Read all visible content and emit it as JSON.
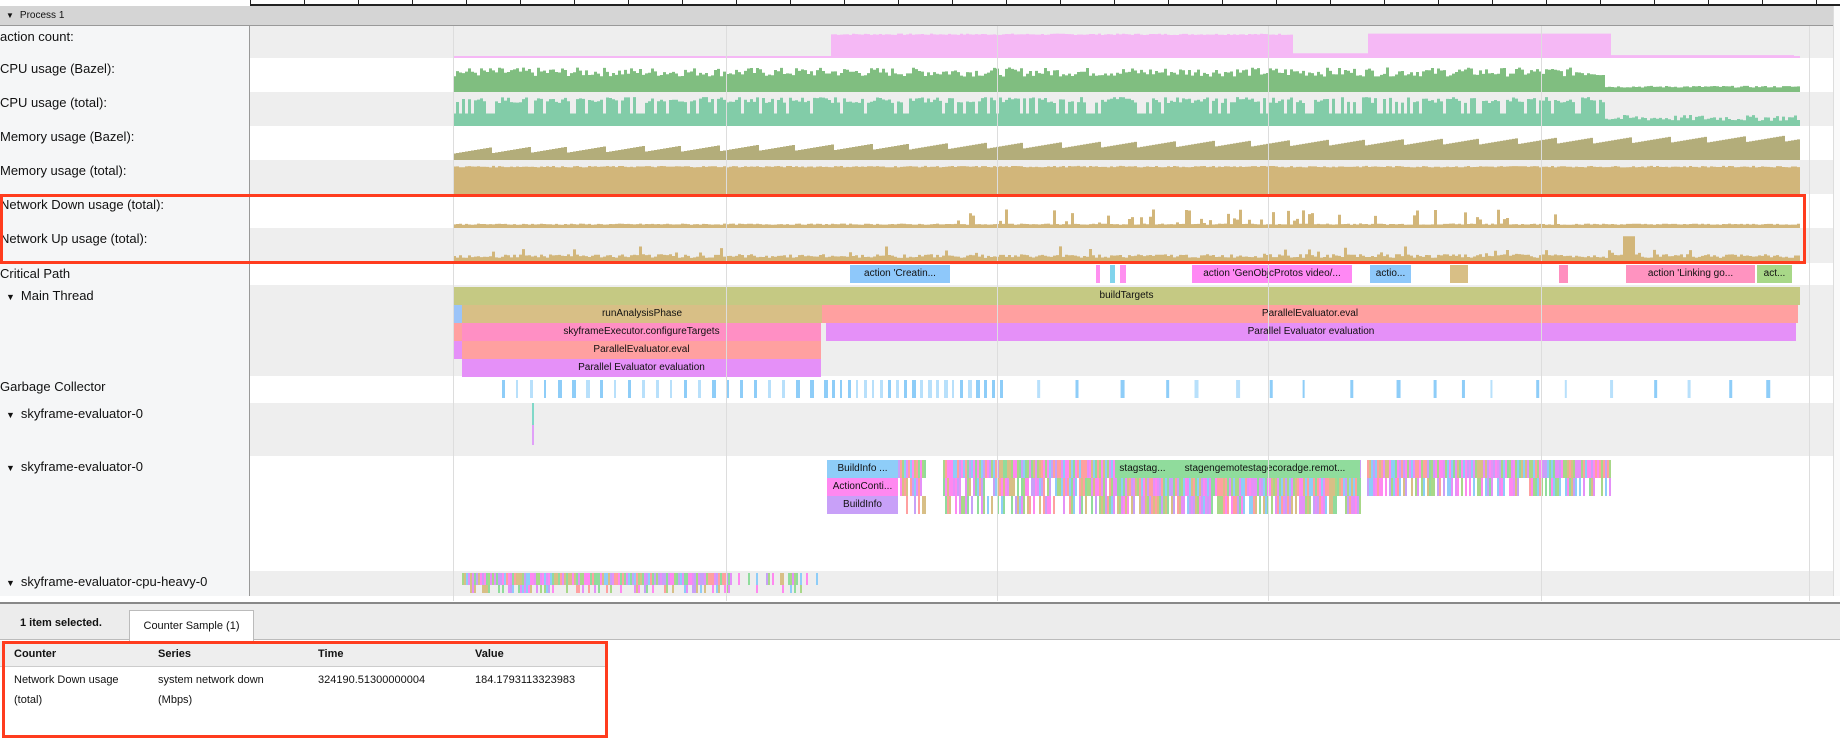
{
  "process": {
    "label": "Process 1"
  },
  "tracks": {
    "action_count": "action count:",
    "cpu_bazel": "CPU usage (Bazel):",
    "cpu_total": "CPU usage (total):",
    "mem_bazel": "Memory usage (Bazel):",
    "mem_total": "Memory usage (total):",
    "net_down": "Network Down usage (total):",
    "net_up": "Network Up usage (total):",
    "critical_path": "Critical Path",
    "main_thread": "Main Thread",
    "gc": "Garbage Collector",
    "sky0a": "skyframe-evaluator-0",
    "sky0b": "skyframe-evaluator-0",
    "cpu_heavy": "skyframe-evaluator-cpu-heavy-0"
  },
  "colors": {
    "action_count": "#f5b8f5",
    "cpu_bazel": "#80be80",
    "cpu_total": "#82cca8",
    "mem_bazel": "#b3ad7a",
    "mem_total": "#d2b67a",
    "network": "#d2b67a",
    "highlight": "#ff3c1e"
  },
  "critical_path": [
    "action 'Creatin...",
    "action 'GenObjcProtos video/...",
    "actio...",
    "action 'Linking go...",
    "act..."
  ],
  "main_thread": {
    "build_targets": "buildTargets",
    "run_analysis": "runAnalysisPhase",
    "pe_eval": "ParallelEvaluator.eval",
    "configure_targets": "skyframeExecutor.configureTargets",
    "pe_evaluation": "Parallel Evaluator evaluation"
  },
  "sky": {
    "buildinfo_ellipsis": "BuildInfo ...",
    "action_context": "ActionConti...",
    "buildinfo": "BuildInfo",
    "stage1": "stagstag...",
    "stage2": "stagengemotestagecoradge.remot..."
  },
  "bottom": {
    "selected": "1 item selected.",
    "tab": "Counter Sample (1)",
    "headers": [
      "Counter",
      "Series",
      "Time",
      "Value"
    ],
    "row": {
      "counter": "Network Down usage (total)",
      "series": "system network down (Mbps)",
      "time": "324190.51300000004",
      "value": "184.1793113323983"
    }
  }
}
